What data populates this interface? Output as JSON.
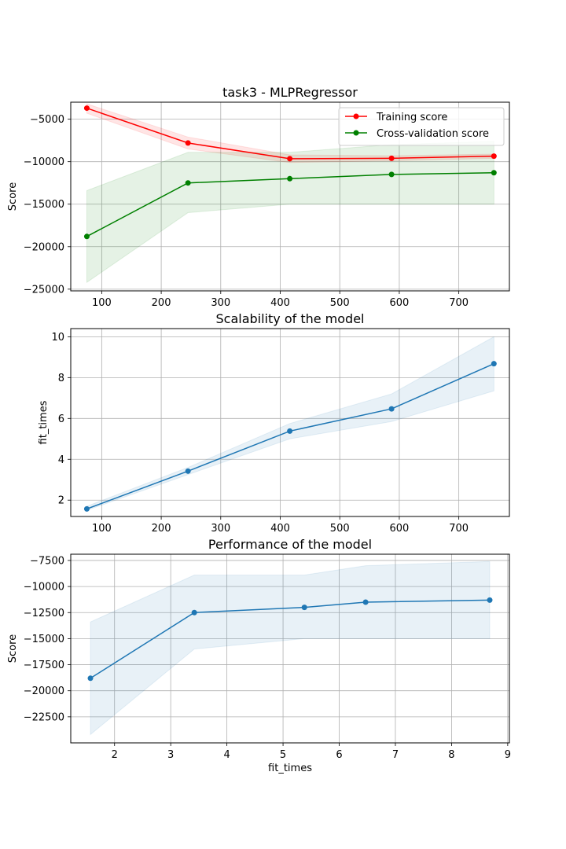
{
  "chart_data": [
    {
      "type": "line",
      "title": "task3 - MLPRegressor",
      "xlabel": "",
      "ylabel": "Score",
      "xlim": [
        48,
        785
      ],
      "ylim": [
        -25200,
        -3000
      ],
      "xticks": [
        100,
        200,
        300,
        400,
        500,
        600,
        700
      ],
      "yticks": [
        -25000,
        -20000,
        -15000,
        -10000,
        -5000
      ],
      "grid": true,
      "legend": "upper-right",
      "x": [
        75,
        245,
        416,
        587,
        759
      ],
      "series": [
        {
          "name": "Training score",
          "color": "#ff0000",
          "values": [
            -3700,
            -7800,
            -9650,
            -9600,
            -9350
          ],
          "band_lower": [
            -4300,
            -8500,
            -10100,
            -9900,
            -9600
          ],
          "band_upper": [
            -3200,
            -7100,
            -9200,
            -9300,
            -9100
          ]
        },
        {
          "name": "Cross-validation score",
          "color": "#008000",
          "values": [
            -18800,
            -12500,
            -12000,
            -11500,
            -11300
          ],
          "band_lower": [
            -24200,
            -16000,
            -15000,
            -15000,
            -15000
          ],
          "band_upper": [
            -13400,
            -8900,
            -8900,
            -8000,
            -7600
          ]
        }
      ]
    },
    {
      "type": "line",
      "title": "Scalability of the model",
      "xlabel": "",
      "ylabel": "fit_times",
      "xlim": [
        48,
        785
      ],
      "ylim": [
        1.2,
        10.4
      ],
      "xticks": [
        100,
        200,
        300,
        400,
        500,
        600,
        700
      ],
      "yticks": [
        2,
        4,
        6,
        8,
        10
      ],
      "grid": true,
      "x": [
        75,
        245,
        416,
        587,
        759
      ],
      "series": [
        {
          "color": "#1f77b4",
          "values": [
            1.57,
            3.42,
            5.38,
            6.47,
            8.68
          ],
          "band_lower": [
            1.5,
            3.25,
            5.0,
            5.85,
            7.35
          ],
          "band_upper": [
            1.7,
            3.6,
            5.75,
            7.2,
            10.0
          ]
        }
      ]
    },
    {
      "type": "line",
      "title": "Performance of the model",
      "xlabel": "fit_times",
      "ylabel": "Score",
      "xlim": [
        1.22,
        9.03
      ],
      "ylim": [
        -25000,
        -6900
      ],
      "xticks": [
        2,
        3,
        4,
        5,
        6,
        7,
        8,
        9
      ],
      "yticks": [
        -22500,
        -20000,
        -17500,
        -15000,
        -12500,
        -10000,
        -7500
      ],
      "grid": true,
      "x": [
        1.57,
        3.42,
        5.38,
        6.47,
        8.68
      ],
      "series": [
        {
          "color": "#1f77b4",
          "values": [
            -18800,
            -12500,
            -12000,
            -11500,
            -11300
          ],
          "band_lower": [
            -24200,
            -16000,
            -15000,
            -15000,
            -15000
          ],
          "band_upper": [
            -13400,
            -8900,
            -8900,
            -8000,
            -7600
          ]
        }
      ]
    }
  ]
}
